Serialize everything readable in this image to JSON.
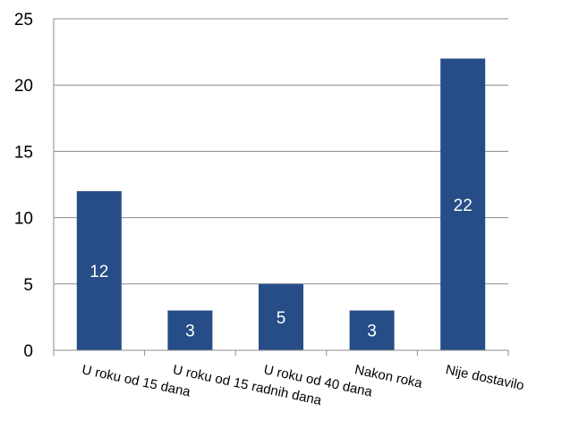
{
  "chart_data": {
    "type": "bar",
    "title": "",
    "xlabel": "",
    "ylabel": "",
    "categories": [
      "U roku od 15 dana",
      "U roku od 15 radnih dana",
      "U roku od 40 dana",
      "Nakon roka",
      "Nije dostavilo"
    ],
    "values": [
      12,
      3,
      5,
      3,
      22
    ],
    "ylim": [
      0,
      25
    ],
    "yticks": [
      "0",
      "5",
      "10",
      "15",
      "20",
      "25"
    ],
    "data_labels": [
      "12",
      "3",
      "5",
      "3",
      "22"
    ],
    "grid": true,
    "legend": "none",
    "colors": {
      "bar": "#264d87"
    }
  }
}
